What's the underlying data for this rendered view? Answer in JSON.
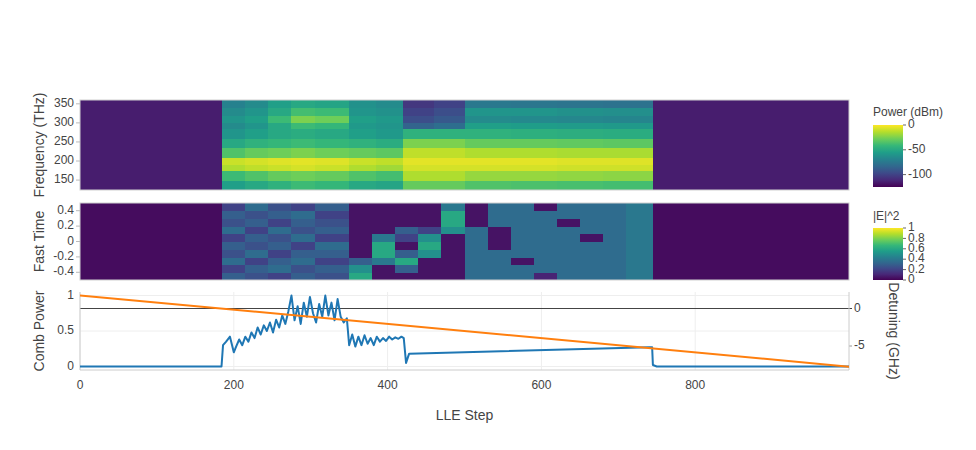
{
  "chart_data": [
    {
      "type": "heatmap",
      "ylabel": "Frequency (THz)",
      "tick_labels": "y",
      "xlim": [
        0,
        1000
      ],
      "ylim": [
        124,
        360
      ],
      "yticks": [
        150,
        200,
        250,
        300,
        350
      ],
      "x_edges": [
        0,
        185,
        215,
        245,
        275,
        305,
        350,
        385,
        420,
        460,
        500,
        560,
        620,
        680,
        745,
        1000
      ],
      "y_edges": [
        124,
        150,
        175,
        190,
        210,
        235,
        260,
        285,
        300,
        320,
        340,
        360
      ],
      "z": [
        [
          -115,
          -55,
          -50,
          -45,
          -40,
          -42,
          -50,
          -52,
          -30,
          -30,
          -35,
          -36,
          -37,
          -38,
          -115
        ],
        [
          -115,
          -40,
          -35,
          -30,
          -28,
          -30,
          -35,
          -38,
          -15,
          -15,
          -20,
          -20,
          -21,
          -22,
          -115
        ],
        [
          -115,
          -15,
          -12,
          -10,
          -8,
          -10,
          -15,
          -18,
          -8,
          -8,
          -8,
          -8,
          -9,
          -9,
          -115
        ],
        [
          -115,
          -10,
          -8,
          -6,
          -5,
          -6,
          -10,
          -12,
          -5,
          -5,
          -5,
          -5,
          -6,
          -6,
          -115
        ],
        [
          -115,
          -35,
          -30,
          -28,
          -25,
          -28,
          -30,
          -32,
          -12,
          -12,
          -15,
          -15,
          -16,
          -16,
          -115
        ],
        [
          -115,
          -50,
          -45,
          -42,
          -40,
          -42,
          -45,
          -48,
          -25,
          -25,
          -30,
          -30,
          -31,
          -32,
          -115
        ],
        [
          -115,
          -60,
          -55,
          -50,
          -48,
          -50,
          -55,
          -58,
          -45,
          -45,
          -45,
          -46,
          -47,
          -48,
          -115
        ],
        [
          -115,
          -65,
          -60,
          -50,
          -40,
          -42,
          -58,
          -60,
          -85,
          -80,
          -55,
          -56,
          -57,
          -58,
          -115
        ],
        [
          -115,
          -60,
          -55,
          -40,
          -25,
          -28,
          -55,
          -58,
          -95,
          -90,
          -65,
          -66,
          -67,
          -68,
          -115
        ],
        [
          -115,
          -65,
          -60,
          -50,
          -38,
          -40,
          -60,
          -62,
          -100,
          -95,
          -60,
          -60,
          -62,
          -63,
          -115
        ],
        [
          -115,
          -70,
          -65,
          -55,
          -50,
          -52,
          -62,
          -65,
          -105,
          -100,
          -75,
          -76,
          -77,
          -78,
          -115
        ]
      ],
      "colorbar": {
        "title": "Power (dBm)",
        "range": [
          -125,
          0
        ],
        "ticks": [
          -100,
          -50,
          0
        ]
      }
    },
    {
      "type": "heatmap",
      "ylabel": "Fast Time",
      "tick_labels": "y",
      "xlim": [
        0,
        1000
      ],
      "ylim": [
        -0.5,
        0.5
      ],
      "yticks": [
        -0.4,
        -0.2,
        0,
        0.2,
        0.4
      ],
      "x_edges": [
        0,
        185,
        215,
        245,
        275,
        305,
        350,
        380,
        410,
        440,
        470,
        500,
        530,
        560,
        590,
        620,
        650,
        680,
        710,
        745,
        1000
      ],
      "y_edges": [
        -0.5,
        -0.4,
        -0.3,
        -0.2,
        -0.1,
        0,
        0.1,
        0.2,
        0.3,
        0.4,
        0.5
      ],
      "z": [
        [
          0.03,
          0.3,
          0.25,
          0.2,
          0.3,
          0.25,
          0.6,
          0.05,
          0.05,
          0.05,
          0.05,
          0.35,
          0.35,
          0.35,
          0.1,
          0.35,
          0.35,
          0.35,
          0.4,
          0.03
        ],
        [
          0.03,
          0.2,
          0.3,
          0.35,
          0.25,
          0.3,
          0.5,
          0.05,
          0.3,
          0.05,
          0.05,
          0.35,
          0.35,
          0.35,
          0.35,
          0.35,
          0.35,
          0.35,
          0.4,
          0.03
        ],
        [
          0.03,
          0.35,
          0.2,
          0.3,
          0.35,
          0.2,
          0.3,
          0.4,
          0.6,
          0.05,
          0.05,
          0.35,
          0.35,
          0.05,
          0.35,
          0.35,
          0.35,
          0.35,
          0.4,
          0.03
        ],
        [
          0.03,
          0.25,
          0.35,
          0.2,
          0.3,
          0.3,
          0.05,
          0.6,
          0.3,
          0.5,
          0.05,
          0.35,
          0.35,
          0.35,
          0.35,
          0.35,
          0.35,
          0.35,
          0.4,
          0.03
        ],
        [
          0.03,
          0.3,
          0.25,
          0.3,
          0.2,
          0.35,
          0.05,
          0.6,
          0.05,
          0.6,
          0.05,
          0.35,
          0.05,
          0.35,
          0.35,
          0.35,
          0.35,
          0.35,
          0.4,
          0.03
        ],
        [
          0.03,
          0.2,
          0.3,
          0.25,
          0.35,
          0.2,
          0.05,
          0.4,
          0.2,
          0.5,
          0.05,
          0.35,
          0.05,
          0.35,
          0.35,
          0.35,
          0.05,
          0.35,
          0.4,
          0.03
        ],
        [
          0.03,
          0.35,
          0.2,
          0.35,
          0.25,
          0.3,
          0.05,
          0.05,
          0.3,
          0.2,
          0.5,
          0.35,
          0.05,
          0.35,
          0.35,
          0.35,
          0.35,
          0.35,
          0.4,
          0.03
        ],
        [
          0.03,
          0.25,
          0.3,
          0.2,
          0.3,
          0.25,
          0.05,
          0.05,
          0.05,
          0.05,
          0.6,
          0.05,
          0.35,
          0.35,
          0.35,
          0.05,
          0.35,
          0.35,
          0.4,
          0.03
        ],
        [
          0.03,
          0.3,
          0.25,
          0.3,
          0.35,
          0.2,
          0.05,
          0.05,
          0.05,
          0.05,
          0.6,
          0.05,
          0.35,
          0.35,
          0.35,
          0.35,
          0.35,
          0.35,
          0.4,
          0.03
        ],
        [
          0.03,
          0.2,
          0.35,
          0.25,
          0.2,
          0.3,
          0.05,
          0.05,
          0.05,
          0.05,
          0.4,
          0.05,
          0.35,
          0.35,
          0.05,
          0.35,
          0.35,
          0.35,
          0.4,
          0.03
        ]
      ],
      "colorbar": {
        "title": "|E|^2",
        "range": [
          0,
          1
        ],
        "ticks": [
          0,
          0.2,
          0.4,
          0.6,
          0.8,
          1
        ]
      }
    },
    {
      "type": "line",
      "xlabel": "LLE Step",
      "ylabel": "Comb Power",
      "y2label": "Detuning (GHz)",
      "grid": true,
      "xlim": [
        0,
        1000
      ],
      "xticks": [
        0,
        200,
        400,
        600,
        800
      ],
      "ylim": [
        -0.05,
        1.05
      ],
      "yticks": [
        0,
        0.5,
        1
      ],
      "y2lim": [
        -8.2,
        2.2
      ],
      "y2ticks": [
        -5,
        0
      ],
      "series": [
        {
          "color": "#1f77b4",
          "x": [
            0,
            184,
            186,
            190,
            195,
            200,
            203,
            207,
            211,
            215,
            219,
            223,
            227,
            231,
            235,
            239,
            243,
            247,
            251,
            255,
            259,
            263,
            267,
            271,
            275,
            279,
            283,
            287,
            291,
            295,
            299,
            303,
            307,
            311,
            315,
            319,
            323,
            327,
            331,
            335,
            339,
            343,
            347,
            350,
            354,
            358,
            362,
            366,
            370,
            374,
            378,
            382,
            386,
            390,
            394,
            398,
            402,
            406,
            410,
            414,
            418,
            421,
            424,
            428,
            740,
            744,
            745,
            750,
            1000
          ],
          "values": [
            0,
            0,
            0.3,
            0.35,
            0.42,
            0.2,
            0.28,
            0.38,
            0.3,
            0.42,
            0.35,
            0.48,
            0.4,
            0.55,
            0.45,
            0.58,
            0.5,
            0.62,
            0.48,
            0.66,
            0.55,
            0.72,
            0.6,
            0.78,
            1.0,
            0.65,
            0.85,
            0.6,
            0.9,
            0.7,
            0.98,
            0.75,
            0.62,
            0.88,
            0.7,
            1.0,
            0.72,
            0.9,
            0.65,
            0.95,
            0.7,
            0.62,
            0.68,
            0.3,
            0.45,
            0.28,
            0.42,
            0.3,
            0.44,
            0.32,
            0.4,
            0.3,
            0.42,
            0.35,
            0.4,
            0.36,
            0.42,
            0.38,
            0.41,
            0.39,
            0.42,
            0.4,
            0.05,
            0.18,
            0.27,
            0.27,
            0.02,
            0,
            0
          ]
        },
        {
          "color": "#ff7f0e",
          "axis": "y2",
          "x": [
            0,
            1000
          ],
          "values": [
            1.75,
            -7.75
          ]
        }
      ]
    }
  ]
}
